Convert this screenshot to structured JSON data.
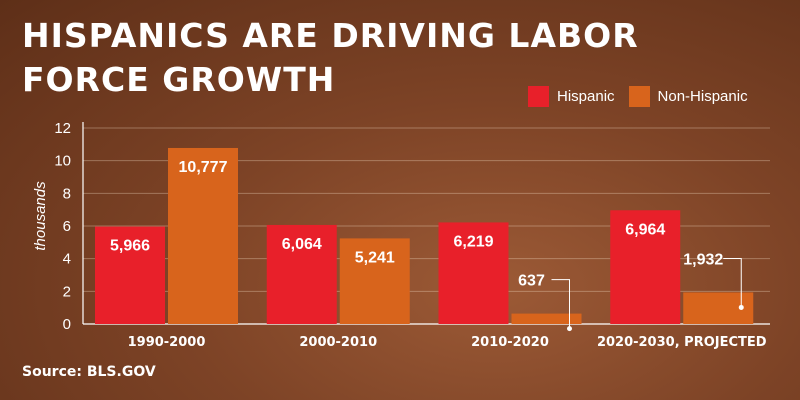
{
  "chart_data": {
    "type": "bar",
    "title": "HISPANICS ARE DRIVING LABOR FORCE GROWTH",
    "ylabel": "thousands",
    "xlabel": "",
    "ylim": [
      0,
      12
    ],
    "yticks": [
      "0",
      "2",
      "4",
      "6",
      "8",
      "10",
      "12"
    ],
    "grid": true,
    "legend_position": "top-right",
    "categories": [
      "1990-2000",
      "2000-2010",
      "2010-2020",
      "2020-2030, PROJECTED"
    ],
    "series": [
      {
        "name": "Hispanic",
        "color": "#e8202a",
        "values": [
          5.966,
          6.064,
          6.219,
          6.964
        ],
        "labels": [
          "5,966",
          "6,064",
          "6,219",
          "6,964"
        ]
      },
      {
        "name": "Non-Hispanic",
        "color": "#d8641c",
        "values": [
          10.777,
          5.241,
          0.637,
          1.932
        ],
        "labels": [
          "10,777",
          "5,241",
          "637",
          "1,932"
        ]
      }
    ],
    "source": "Source: BLS.GOV"
  }
}
